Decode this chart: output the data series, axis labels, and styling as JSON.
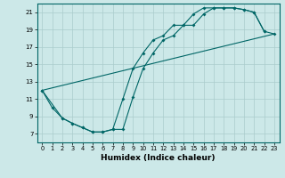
{
  "title": "",
  "xlabel": "Humidex (Indice chaleur)",
  "background_color": "#cce8e8",
  "grid_color": "#aacccc",
  "line_color": "#006666",
  "xlim": [
    -0.5,
    23.5
  ],
  "ylim": [
    6.0,
    22.0
  ],
  "yticks": [
    7,
    9,
    11,
    13,
    15,
    17,
    19,
    21
  ],
  "xticks": [
    0,
    1,
    2,
    3,
    4,
    5,
    6,
    7,
    8,
    9,
    10,
    11,
    12,
    13,
    14,
    15,
    16,
    17,
    18,
    19,
    20,
    21,
    22,
    23
  ],
  "curve1_x": [
    0,
    1,
    2,
    3,
    4,
    5,
    6,
    7,
    8,
    9,
    10,
    11,
    12,
    13,
    14,
    15,
    16,
    17,
    18,
    19,
    20,
    21,
    22
  ],
  "curve1_y": [
    12.0,
    10.0,
    8.8,
    8.2,
    7.7,
    7.2,
    7.2,
    7.5,
    11.0,
    14.5,
    16.3,
    17.8,
    18.3,
    19.5,
    19.5,
    20.8,
    21.5,
    21.5,
    21.5,
    21.5,
    21.3,
    21.0,
    18.8
  ],
  "curve2_x": [
    0,
    2,
    3,
    4,
    5,
    6,
    7,
    8,
    9,
    10,
    11,
    12,
    13,
    14,
    15,
    16,
    17,
    18,
    19,
    20,
    21,
    22,
    23
  ],
  "curve2_y": [
    12.0,
    8.8,
    8.2,
    7.7,
    7.2,
    7.2,
    7.5,
    7.5,
    11.2,
    14.5,
    16.3,
    17.8,
    18.3,
    19.5,
    19.5,
    20.8,
    21.5,
    21.5,
    21.5,
    21.3,
    21.0,
    18.8,
    18.5
  ],
  "curve3_x": [
    0,
    23
  ],
  "curve3_y": [
    12.0,
    18.5
  ]
}
